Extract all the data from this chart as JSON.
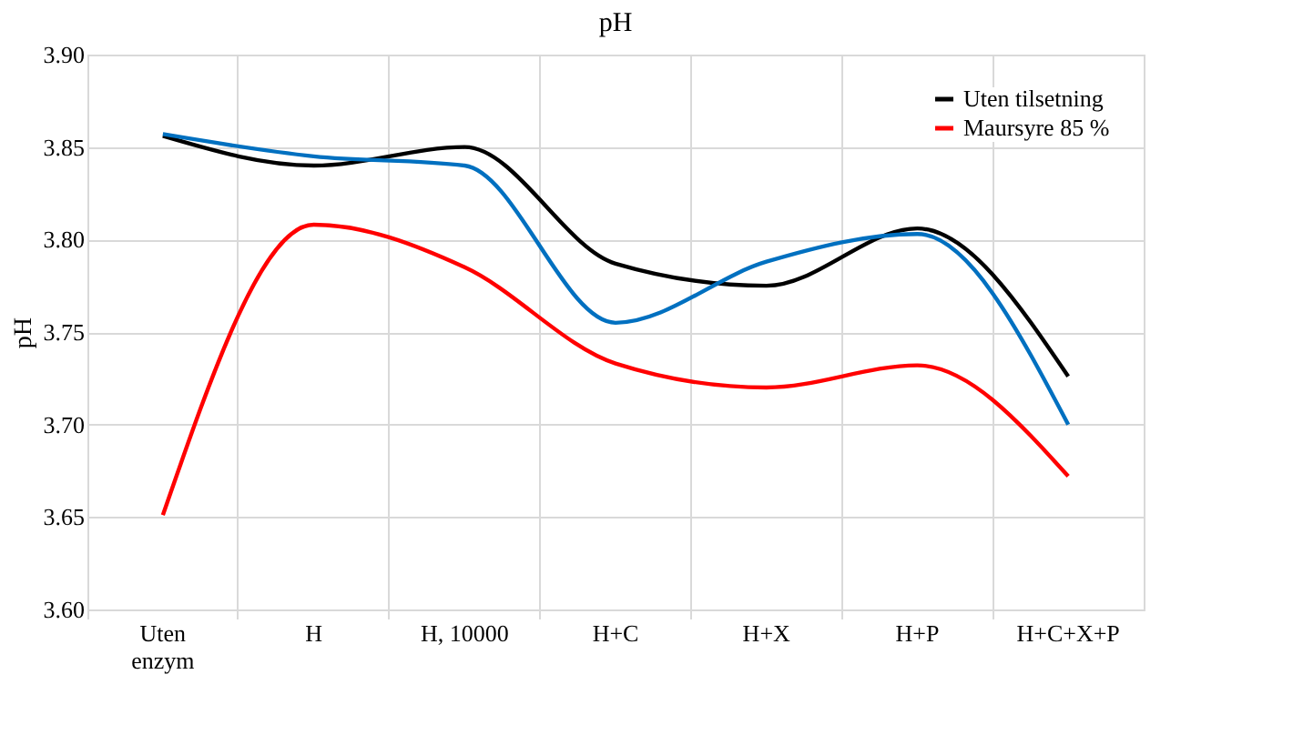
{
  "chart_data": {
    "type": "line",
    "title": "pH",
    "ylabel": "pH",
    "categories": [
      "Uten enzym",
      "H",
      "H, 10000",
      "H+C",
      "H+X",
      "H+P",
      "H+C+X+P"
    ],
    "series": [
      {
        "name": "Uten tilsetning",
        "color": "#000000",
        "values": [
          3.856,
          3.84,
          3.85,
          3.787,
          3.775,
          3.806,
          3.726
        ]
      },
      {
        "name": "Maursyre 85 %",
        "color": "#ff0000",
        "values": [
          3.651,
          3.808,
          3.785,
          3.733,
          3.72,
          3.732,
          3.672
        ]
      },
      {
        "color": "#0070c0",
        "values": [
          3.857,
          3.845,
          3.84,
          3.755,
          3.788,
          3.803,
          3.7
        ]
      }
    ],
    "ylim": [
      3.6,
      3.9
    ],
    "yticks": [
      {
        "value": 3.6,
        "label": "3.60"
      },
      3.65,
      {
        "value": 3.7,
        "label": "3.70"
      },
      3.75,
      {
        "value": 3.8,
        "label": "3.80"
      },
      3.85,
      {
        "value": 3.9,
        "label": "3.90"
      }
    ],
    "grid": true,
    "legend": "top right",
    "marker": "none",
    "line_style": "solid"
  }
}
